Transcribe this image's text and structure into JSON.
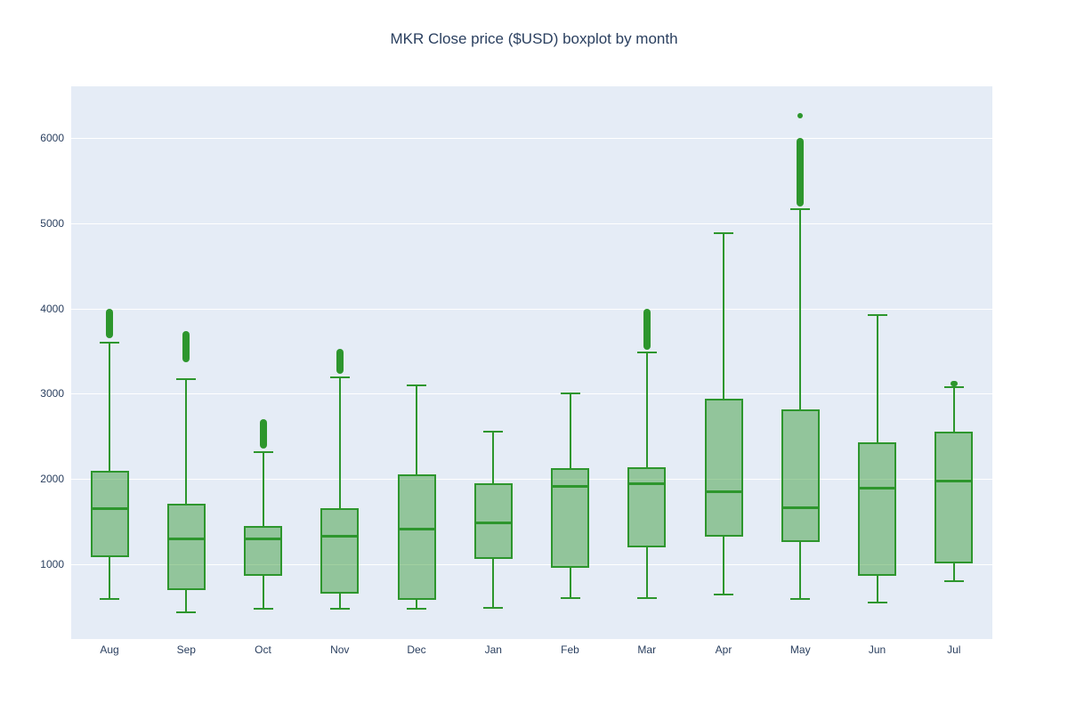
{
  "title": "MKR Close price ($USD) boxplot by month",
  "colors": {
    "line_green": "#2d962d",
    "box_fill": "rgba(45,150,45,0.45)",
    "plot_background": "#e5ecf6",
    "gridline": "#ffffff",
    "text": "#2a3f5f",
    "page_background": "#ffffff"
  },
  "chart_data": {
    "type": "boxplot",
    "title": "MKR Close price ($USD) boxplot by month",
    "xlabel": "",
    "ylabel": "",
    "ylim": [
      120,
      6610
    ],
    "yticks": [
      1000,
      2000,
      3000,
      4000,
      5000,
      6000
    ],
    "grid": true,
    "legend": false,
    "categories": [
      "Aug",
      "Sep",
      "Oct",
      "Nov",
      "Dec",
      "Jan",
      "Feb",
      "Mar",
      "Apr",
      "May",
      "Jun",
      "Jul"
    ],
    "series": [
      {
        "month": "Aug",
        "whisker_low": 600,
        "q1": 1080,
        "median": 1660,
        "q3": 2090,
        "whisker_high": 3610,
        "outlier_range": [
          3650,
          4000
        ],
        "outlier_points": []
      },
      {
        "month": "Sep",
        "whisker_low": 445,
        "q1": 700,
        "median": 1300,
        "q3": 1710,
        "whisker_high": 3180,
        "outlier_range": [
          3370,
          3740
        ],
        "outlier_points": []
      },
      {
        "month": "Oct",
        "whisker_low": 490,
        "q1": 865,
        "median": 1300,
        "q3": 1450,
        "whisker_high": 2330,
        "outlier_range": [
          2360,
          2700
        ],
        "outlier_points": []
      },
      {
        "month": "Nov",
        "whisker_low": 490,
        "q1": 655,
        "median": 1335,
        "q3": 1660,
        "whisker_high": 3200,
        "outlier_range": [
          3230,
          3530
        ],
        "outlier_points": []
      },
      {
        "month": "Dec",
        "whisker_low": 490,
        "q1": 575,
        "median": 1420,
        "q3": 2055,
        "whisker_high": 3110,
        "outlier_range": null,
        "outlier_points": []
      },
      {
        "month": "Jan",
        "whisker_low": 500,
        "q1": 1065,
        "median": 1490,
        "q3": 1950,
        "whisker_high": 2570,
        "outlier_range": null,
        "outlier_points": []
      },
      {
        "month": "Feb",
        "whisker_low": 615,
        "q1": 960,
        "median": 1920,
        "q3": 2130,
        "whisker_high": 3020,
        "outlier_range": null,
        "outlier_points": []
      },
      {
        "month": "Mar",
        "whisker_low": 615,
        "q1": 1200,
        "median": 1950,
        "q3": 2140,
        "whisker_high": 3500,
        "outlier_range": [
          3520,
          4000
        ],
        "outlier_points": []
      },
      {
        "month": "Apr",
        "whisker_low": 655,
        "q1": 1325,
        "median": 1855,
        "q3": 2945,
        "whisker_high": 4900,
        "outlier_range": null,
        "outlier_points": []
      },
      {
        "month": "May",
        "whisker_low": 605,
        "q1": 1255,
        "median": 1670,
        "q3": 2820,
        "whisker_high": 5180,
        "outlier_range": [
          5200,
          6000
        ],
        "outlier_points": [
          6260
        ]
      },
      {
        "month": "Jun",
        "whisker_low": 555,
        "q1": 860,
        "median": 1900,
        "q3": 2425,
        "whisker_high": 3930,
        "outlier_range": null,
        "outlier_points": []
      },
      {
        "month": "Jul",
        "whisker_low": 805,
        "q1": 1005,
        "median": 1985,
        "q3": 2560,
        "whisker_high": 3090,
        "outlier_range": [
          3095,
          3155
        ],
        "outlier_points": []
      }
    ]
  }
}
